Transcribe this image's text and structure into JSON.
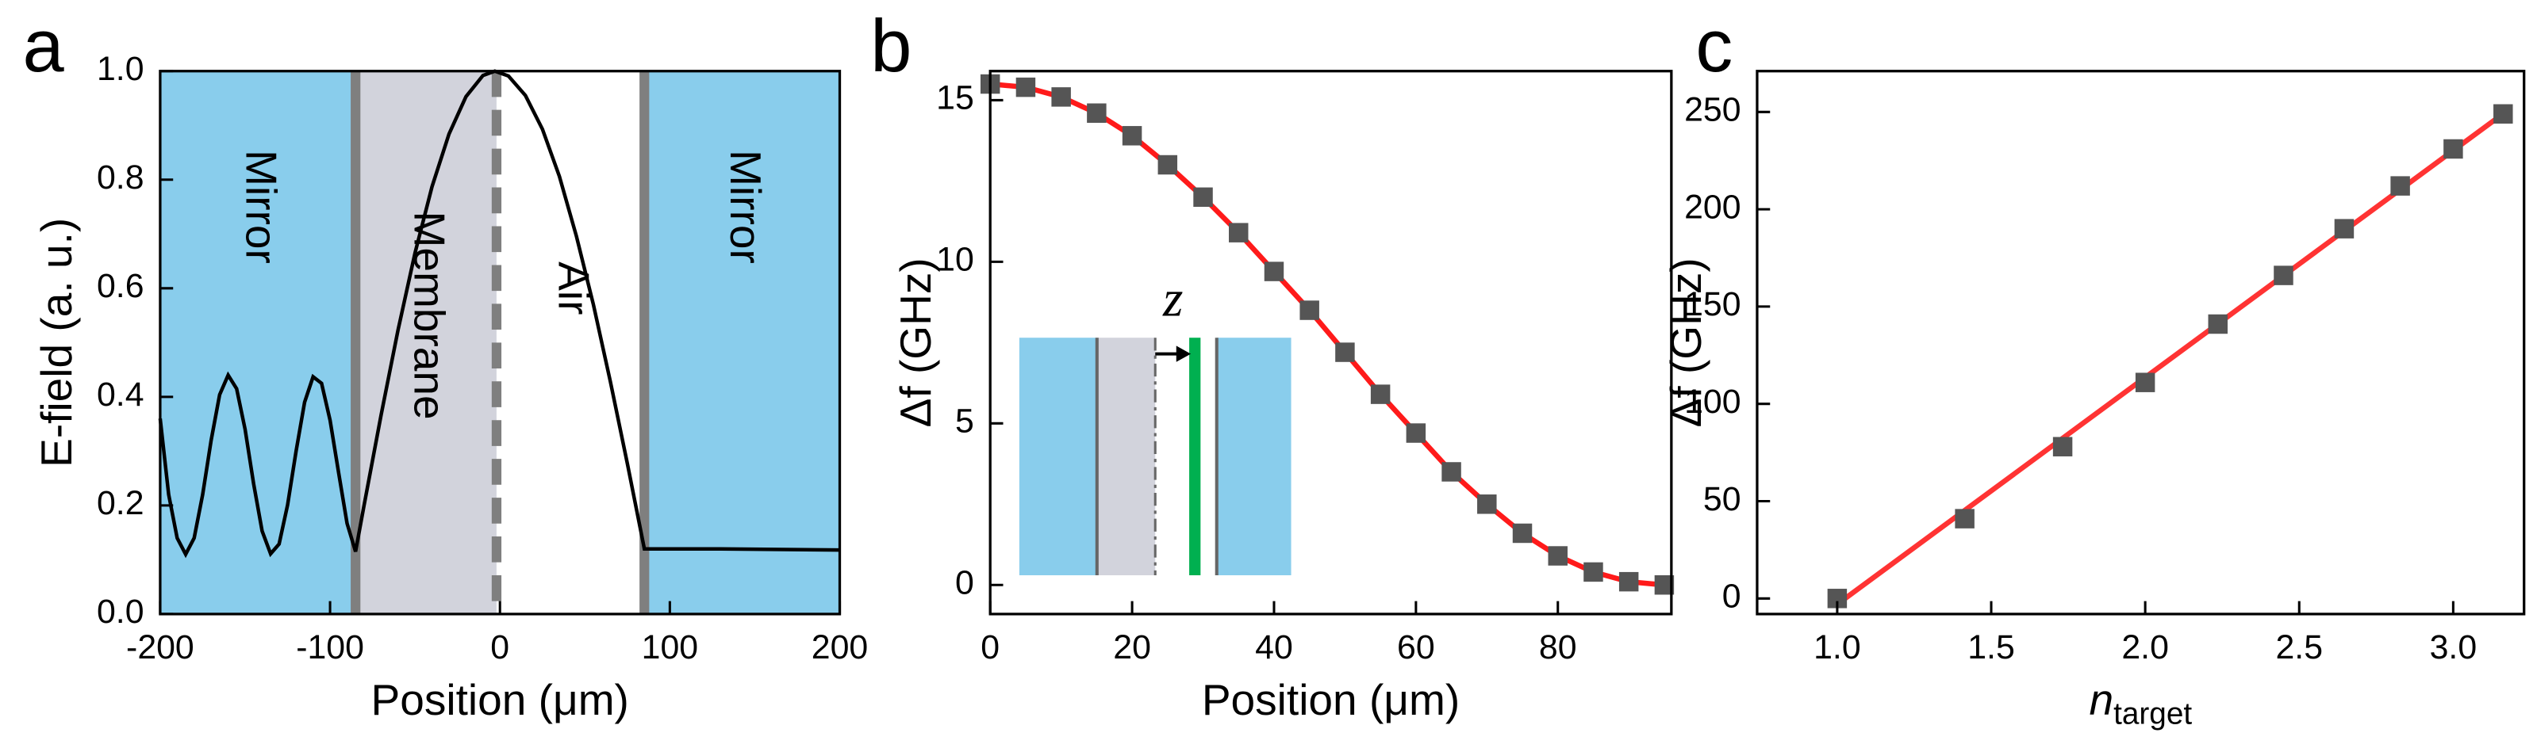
{
  "chart_data": [
    {
      "type": "line",
      "panel_label": "a",
      "xlabel": "Position (μm)",
      "ylabel": "E-field (a. u.)",
      "xlim": [
        -200,
        200
      ],
      "ylim": [
        0,
        1
      ],
      "xticks": [
        -200,
        -100,
        0,
        100,
        200
      ],
      "yticks": [
        {
          "value": 0,
          "label": "0.0"
        },
        0.2,
        0.4,
        0.6,
        0.8,
        {
          "value": 1,
          "label": "1.0"
        }
      ],
      "regions": [
        {
          "label": "Mirror",
          "x": [
            -200,
            -85
          ],
          "color": "#89cdec"
        },
        {
          "label": "Membrane",
          "x": [
            -85,
            -2
          ],
          "color": "#d2d3dc"
        },
        {
          "label": "Air",
          "x": [
            -2,
            85
          ],
          "color": "#ffffff"
        },
        {
          "label": "Mirror",
          "x": [
            85,
            200
          ],
          "color": "#89cdec"
        }
      ],
      "boundaries": [
        {
          "x": -85,
          "style": "solid"
        },
        {
          "x": -2,
          "style": "dashed"
        },
        {
          "x": 85,
          "style": "solid"
        }
      ],
      "series": [
        {
          "color": "#000000",
          "mode": "line",
          "x": [
            -200,
            -195,
            -190,
            -185,
            -180,
            -175,
            -170,
            -165,
            -160,
            -155,
            -150,
            -145,
            -140,
            -135,
            -130,
            -125,
            -120,
            -115,
            -110,
            -105,
            -100,
            -95,
            -90,
            -85,
            -80,
            -70,
            -60,
            -50,
            -40,
            -30,
            -20,
            -10,
            -3,
            5,
            15,
            25,
            35,
            45,
            55,
            65,
            75,
            85,
            100,
            130,
            200
          ],
          "values": [
            0.36,
            0.22,
            0.14,
            0.11,
            0.14,
            0.22,
            0.32,
            0.404,
            0.44,
            0.415,
            0.34,
            0.24,
            0.153,
            0.111,
            0.129,
            0.201,
            0.3,
            0.39,
            0.437,
            0.425,
            0.357,
            0.261,
            0.167,
            0.115,
            0.2,
            0.366,
            0.523,
            0.665,
            0.787,
            0.884,
            0.953,
            0.992,
            1.0,
            0.991,
            0.955,
            0.893,
            0.806,
            0.696,
            0.57,
            0.428,
            0.277,
            0.12,
            0.12,
            0.12,
            0.118
          ]
        }
      ]
    },
    {
      "type": "scatter",
      "panel_label": "b",
      "xlabel": "Position (μm)",
      "ylabel": "Δf (GHz)",
      "xlim": [
        0,
        96
      ],
      "ylim": [
        -0.9,
        15.9
      ],
      "xticks": [
        0,
        20,
        40,
        60,
        80
      ],
      "yticks": [
        0,
        5,
        10,
        15
      ],
      "annotations": [
        "z"
      ],
      "series": [
        {
          "color": "#ff1a1a",
          "mode": "line",
          "x": [
            0,
            5,
            10,
            15,
            20,
            25,
            30,
            35,
            40,
            45,
            50,
            55,
            60,
            65,
            70,
            75,
            80,
            85,
            90,
            95
          ],
          "values": [
            15.5,
            15.4,
            15.1,
            14.6,
            13.9,
            13.0,
            12.0,
            10.9,
            9.7,
            8.5,
            7.2,
            5.9,
            4.7,
            3.5,
            2.5,
            1.6,
            0.9,
            0.4,
            0.1,
            0.0
          ]
        },
        {
          "color": "#555555",
          "mode": "markers",
          "x": [
            0,
            5,
            10,
            15,
            20,
            25,
            30,
            35,
            40,
            45,
            50,
            55,
            60,
            65,
            70,
            75,
            80,
            85,
            90,
            95
          ],
          "values": [
            15.5,
            15.4,
            15.1,
            14.6,
            13.9,
            13.0,
            12.0,
            10.9,
            9.7,
            8.5,
            7.2,
            5.9,
            4.7,
            3.5,
            2.5,
            1.6,
            0.9,
            0.4,
            0.1,
            0.0
          ]
        }
      ]
    },
    {
      "type": "scatter",
      "panel_label": "c",
      "xlabel": "n",
      "xlabel_subscript": "target",
      "ylabel": "Δf (GHz)",
      "xlim": [
        0.74,
        3.23
      ],
      "ylim": [
        -8,
        271
      ],
      "xticks": [
        {
          "value": 1,
          "label": "1.0"
        },
        1.5,
        {
          "value": 2,
          "label": "2.0"
        },
        2.5,
        {
          "value": 3,
          "label": "3.0"
        }
      ],
      "yticks": [
        0,
        50,
        100,
        150,
        200,
        250
      ],
      "series": [
        {
          "color": "#ff3333",
          "mode": "line",
          "x": [
            1.0,
            3.17
          ],
          "values": [
            -3,
            250
          ]
        },
        {
          "color": "#555555",
          "mode": "markers",
          "x": [
            1.0,
            1.414,
            1.732,
            2.0,
            2.236,
            2.449,
            2.646,
            2.828,
            3.0,
            3.162
          ],
          "values": [
            0,
            41,
            78,
            111,
            141,
            166,
            190,
            212,
            231,
            249
          ]
        }
      ]
    }
  ]
}
